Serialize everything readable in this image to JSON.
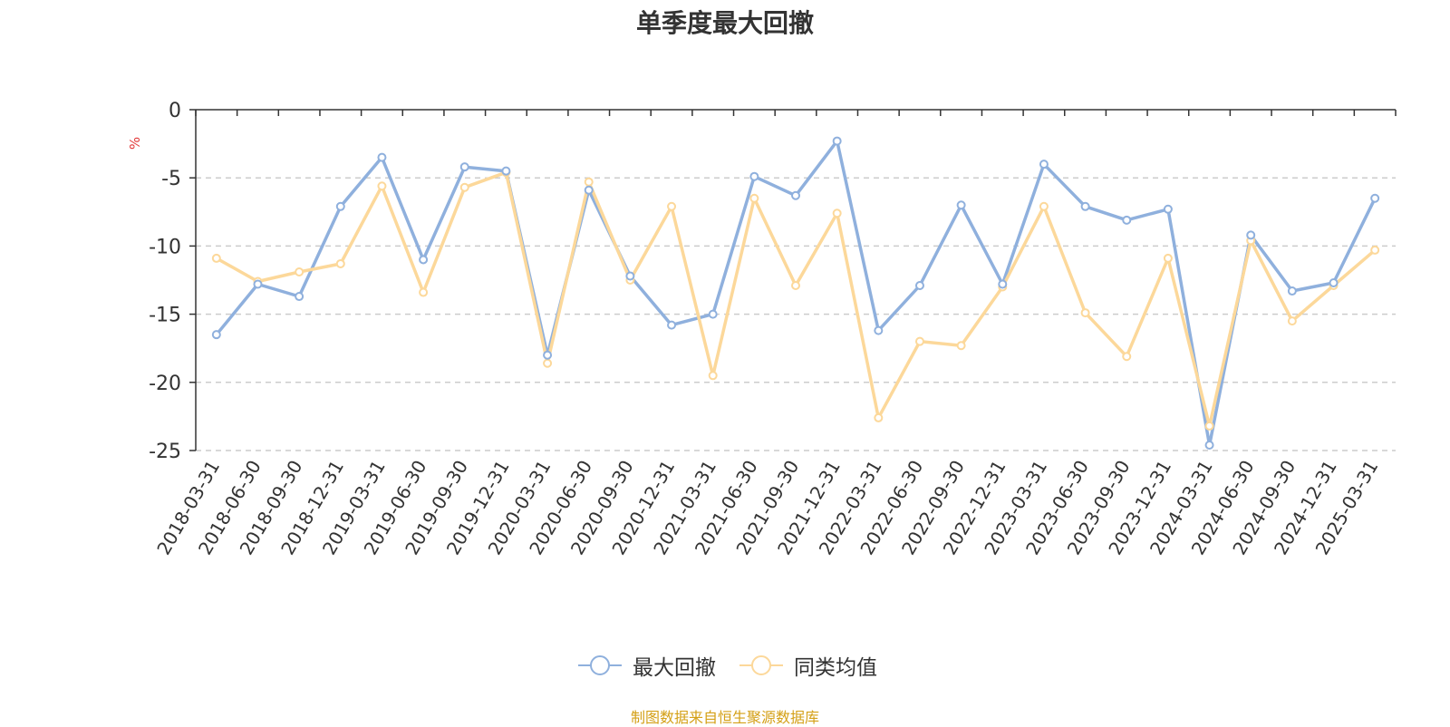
{
  "chart_data": {
    "type": "line",
    "title": "单季度最大回撤",
    "ylabel": "%",
    "ylim": [
      -25,
      0
    ],
    "yticks": [
      "0",
      "-5",
      "-10",
      "-15",
      "-20",
      "-25"
    ],
    "grid": true,
    "legend_position": "bottom",
    "categories": [
      "2018-03-31",
      "2018-06-30",
      "2018-09-30",
      "2018-12-31",
      "2019-03-31",
      "2019-06-30",
      "2019-09-30",
      "2019-12-31",
      "2020-03-31",
      "2020-06-30",
      "2020-09-30",
      "2020-12-31",
      "2021-03-31",
      "2021-06-30",
      "2021-09-30",
      "2021-12-31",
      "2022-03-31",
      "2022-06-30",
      "2022-09-30",
      "2022-12-31",
      "2023-03-31",
      "2023-06-30",
      "2023-09-30",
      "2023-12-31",
      "2024-03-31",
      "2024-06-30",
      "2024-09-30",
      "2024-12-31",
      "2025-03-31"
    ],
    "series": [
      {
        "name": "最大回撤",
        "color": "#8fb0dd",
        "values": [
          -16.5,
          -12.8,
          -13.7,
          -7.1,
          -3.5,
          -11.0,
          -4.2,
          -4.5,
          -18.0,
          -5.9,
          -12.2,
          -15.8,
          -15.0,
          -4.9,
          -6.3,
          -2.3,
          -16.2,
          -12.9,
          -7.0,
          -12.8,
          -4.0,
          -7.1,
          -8.1,
          -7.3,
          -24.6,
          -9.2,
          -13.3,
          -12.7,
          -6.5
        ]
      },
      {
        "name": "同类均值",
        "color": "#fcd89a",
        "values": [
          -10.9,
          -12.6,
          -11.9,
          -11.3,
          -5.6,
          -13.4,
          -5.7,
          -4.6,
          -18.6,
          -5.3,
          -12.5,
          -7.1,
          -19.5,
          -6.5,
          -12.9,
          -7.6,
          -22.6,
          -17.0,
          -17.3,
          -13.0,
          -7.1,
          -14.9,
          -18.1,
          -10.9,
          -23.2,
          -9.6,
          -15.5,
          -12.9,
          -10.3
        ]
      }
    ]
  },
  "footer": {
    "source": "制图数据来自恒生聚源数据库"
  }
}
